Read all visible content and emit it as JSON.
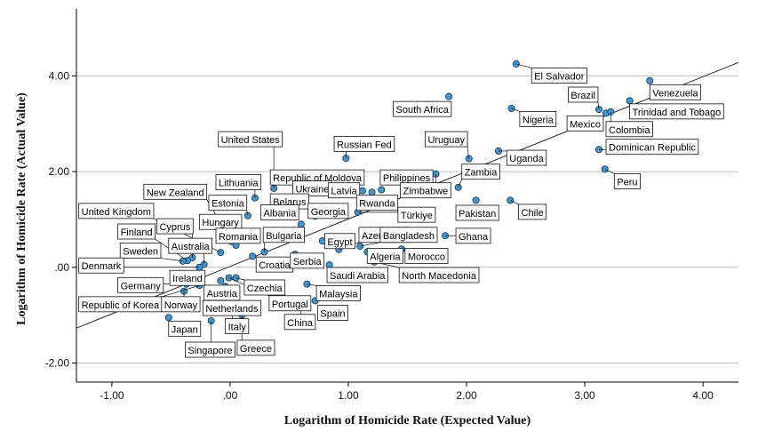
{
  "chart_data": {
    "type": "scatter",
    "xlabel": "Logarithm of Homicide Rate (Expected Value)",
    "ylabel": "Logarithm of Homicide Rate (Actual Value)",
    "xlim": [
      -1.3,
      4.3
    ],
    "ylim": [
      -2.4,
      5.4
    ],
    "xticks": [
      -1.0,
      0.0,
      1.0,
      2.0,
      3.0,
      4.0
    ],
    "xtick_labels": [
      "-1.00",
      ".00",
      "1.00",
      "2.00",
      "3.00",
      "4.00"
    ],
    "yticks": [
      -2.0,
      0.0,
      2.0,
      4.0
    ],
    "ytick_labels": [
      "-2.00",
      ".00",
      "2.00",
      "4.00"
    ],
    "grid": "horizontal",
    "legend": "none",
    "fit_line": {
      "x": [
        -1.3,
        4.3
      ],
      "y": [
        -1.27,
        4.28
      ]
    },
    "point_color": "#3a9ad9",
    "points": [
      {
        "label": "El Salvador",
        "x": 2.42,
        "y": 4.25,
        "lx": 2.55,
        "ly": 3.98
      },
      {
        "label": "Venezuela",
        "x": 3.55,
        "y": 3.9,
        "lx": 3.55,
        "ly": 3.63
      },
      {
        "label": "Brazil",
        "x": 3.12,
        "y": 3.3,
        "lx": 2.86,
        "ly": 3.58
      },
      {
        "label": "Trinidad and Tobago",
        "x": 3.38,
        "y": 3.48,
        "lx": 3.38,
        "ly": 3.23
      },
      {
        "label": "Mexico",
        "x": 3.18,
        "y": 3.22,
        "lx": 2.85,
        "ly": 2.98
      },
      {
        "label": "Colombia",
        "x": 3.22,
        "y": 3.25,
        "lx": 3.18,
        "ly": 2.86
      },
      {
        "label": "Dominican Republic",
        "x": 3.12,
        "y": 2.46,
        "lx": 3.18,
        "ly": 2.49
      },
      {
        "label": "Peru",
        "x": 3.17,
        "y": 2.05,
        "lx": 3.25,
        "ly": 1.77
      },
      {
        "label": "South Africa",
        "x": 1.85,
        "y": 3.57,
        "lx": 1.38,
        "ly": 3.28
      },
      {
        "label": "Nigeria",
        "x": 2.38,
        "y": 3.32,
        "lx": 2.45,
        "ly": 3.07
      },
      {
        "label": "Uruguay",
        "x": 2.02,
        "y": 2.27,
        "lx": 1.65,
        "ly": 2.65
      },
      {
        "label": "Uganda",
        "x": 2.27,
        "y": 2.43,
        "lx": 2.34,
        "ly": 2.26
      },
      {
        "label": "Zambia",
        "x": 1.93,
        "y": 1.67,
        "lx": 1.96,
        "ly": 1.97
      },
      {
        "label": "Pakistan",
        "x": 2.08,
        "y": 1.4,
        "lx": 1.91,
        "ly": 1.11
      },
      {
        "label": "Chile",
        "x": 2.37,
        "y": 1.4,
        "lx": 2.44,
        "ly": 1.13
      },
      {
        "label": "Ghana",
        "x": 1.82,
        "y": 0.66,
        "lx": 1.91,
        "ly": 0.63
      },
      {
        "label": "Russian Fed",
        "x": 0.98,
        "y": 2.28,
        "lx": 0.88,
        "ly": 2.55
      },
      {
        "label": "United States",
        "x": 0.37,
        "y": 1.65,
        "lx": -0.1,
        "ly": 2.65
      },
      {
        "label": "Republic of Moldova",
        "x": 0.58,
        "y": 1.62,
        "lx": 0.34,
        "ly": 1.85
      },
      {
        "label": "Philippines",
        "x": 1.28,
        "y": 1.62,
        "lx": 1.27,
        "ly": 1.85
      },
      {
        "label": "Zimbabwe",
        "x": 1.74,
        "y": 1.95,
        "lx": 1.44,
        "ly": 1.58
      },
      {
        "label": "Ukraine",
        "x": 0.68,
        "y": 1.57,
        "lx": 0.53,
        "ly": 1.62
      },
      {
        "label": "Latvia",
        "x": 1.12,
        "y": 1.6,
        "lx": 0.83,
        "ly": 1.58
      },
      {
        "label": "Rwanda",
        "x": 1.2,
        "y": 1.57,
        "lx": 1.07,
        "ly": 1.32
      },
      {
        "label": "Belarus",
        "x": 0.55,
        "y": 1.15,
        "lx": 0.34,
        "ly": 1.35
      },
      {
        "label": "Lithuania",
        "x": 0.21,
        "y": 1.45,
        "lx": -0.12,
        "ly": 1.75
      },
      {
        "label": "Estonia",
        "x": 0.15,
        "y": 1.08,
        "lx": -0.18,
        "ly": 1.32
      },
      {
        "label": "Albania",
        "x": 0.6,
        "y": 0.9,
        "lx": 0.26,
        "ly": 1.12
      },
      {
        "label": "Georgia",
        "x": 0.72,
        "y": 1.07,
        "lx": 0.66,
        "ly": 1.15
      },
      {
        "label": "Türkiye",
        "x": 1.08,
        "y": 1.15,
        "lx": 1.42,
        "ly": 1.07
      },
      {
        "label": "Hungary",
        "x": 0.02,
        "y": 0.68,
        "lx": -0.26,
        "ly": 0.92
      },
      {
        "label": "New Zealand",
        "x": 0.01,
        "y": 0.54,
        "lx": -0.73,
        "ly": 1.55
      },
      {
        "label": "United Kingdom",
        "x": -0.08,
        "y": 0.31,
        "lx": -1.28,
        "ly": 1.15
      },
      {
        "label": "Cyprus",
        "x": -0.32,
        "y": 0.2,
        "lx": -0.62,
        "ly": 0.83
      },
      {
        "label": "Finland",
        "x": -0.36,
        "y": 0.14,
        "lx": -0.95,
        "ly": 0.72
      },
      {
        "label": "Australia",
        "x": -0.22,
        "y": 0.06,
        "lx": -0.52,
        "ly": 0.42
      },
      {
        "label": "Romania",
        "x": 0.05,
        "y": 0.46,
        "lx": -0.12,
        "ly": 0.63
      },
      {
        "label": "Bulgaria",
        "x": 0.29,
        "y": 0.32,
        "lx": 0.28,
        "ly": 0.65
      },
      {
        "label": "Sweden",
        "x": -0.4,
        "y": 0.13,
        "lx": -0.93,
        "ly": 0.32
      },
      {
        "label": "Egypt",
        "x": 0.78,
        "y": 0.55,
        "lx": 0.8,
        "ly": 0.52
      },
      {
        "label": "Azerbaijan",
        "x": 0.92,
        "y": 0.37,
        "lx": 1.09,
        "ly": 0.65
      },
      {
        "label": "Bangladesh",
        "x": 1.1,
        "y": 0.44,
        "lx": 1.27,
        "ly": 0.65
      },
      {
        "label": "Algeria",
        "x": 1.16,
        "y": 0.32,
        "lx": 1.16,
        "ly": 0.21
      },
      {
        "label": "Morocco",
        "x": 1.45,
        "y": 0.38,
        "lx": 1.48,
        "ly": 0.21
      },
      {
        "label": "Denmark",
        "x": -0.26,
        "y": 0.0,
        "lx": -1.28,
        "ly": 0.01
      },
      {
        "label": "Croatia",
        "x": 0.19,
        "y": 0.23,
        "lx": 0.22,
        "ly": 0.03
      },
      {
        "label": "Serbia",
        "x": 0.55,
        "y": 0.27,
        "lx": 0.51,
        "ly": 0.11
      },
      {
        "label": "Saudi Arabia",
        "x": 0.84,
        "y": 0.05,
        "lx": 0.82,
        "ly": -0.19
      },
      {
        "label": "North Macedonia",
        "x": 1.22,
        "y": 0.11,
        "lx": 1.43,
        "ly": -0.19
      },
      {
        "label": "Portugal",
        "x": -0.01,
        "y": -0.22,
        "lx": 0.33,
        "ly": -0.78
      },
      {
        "label": "Ireland",
        "x": -0.3,
        "y": -0.22,
        "lx": -0.51,
        "ly": -0.25
      },
      {
        "label": "Germany",
        "x": -0.37,
        "y": -0.35,
        "lx": -0.95,
        "ly": -0.4
      },
      {
        "label": "Czechia",
        "x": 0.05,
        "y": -0.22,
        "lx": 0.12,
        "ly": -0.45
      },
      {
        "label": "Malaysia",
        "x": 0.65,
        "y": -0.35,
        "lx": 0.73,
        "ly": -0.57
      },
      {
        "label": "Austria",
        "x": -0.08,
        "y": -0.28,
        "lx": -0.22,
        "ly": -0.56
      },
      {
        "label": "Republic of Korea",
        "x": -0.26,
        "y": -0.38,
        "lx": -1.28,
        "ly": -0.8
      },
      {
        "label": "Norway",
        "x": -0.39,
        "y": -0.5,
        "lx": -0.58,
        "ly": -0.8
      },
      {
        "label": "Netherlands",
        "x": -0.04,
        "y": -0.4,
        "lx": -0.23,
        "ly": -0.88
      },
      {
        "label": "Spain",
        "x": 0.72,
        "y": -0.7,
        "lx": 0.74,
        "ly": -0.98
      },
      {
        "label": "Japan",
        "x": -0.52,
        "y": -1.05,
        "lx": -0.52,
        "ly": -1.31
      },
      {
        "label": "China",
        "x": 0.6,
        "y": -0.75,
        "lx": 0.46,
        "ly": -1.17
      },
      {
        "label": "Italy",
        "x": 0.02,
        "y": -0.78,
        "lx": -0.04,
        "ly": -1.26
      },
      {
        "label": "Singapore",
        "x": -0.16,
        "y": -1.12,
        "lx": -0.38,
        "ly": -1.75
      },
      {
        "label": "Greece",
        "x": 0.1,
        "y": -1.0,
        "lx": 0.06,
        "ly": -1.71
      }
    ]
  }
}
